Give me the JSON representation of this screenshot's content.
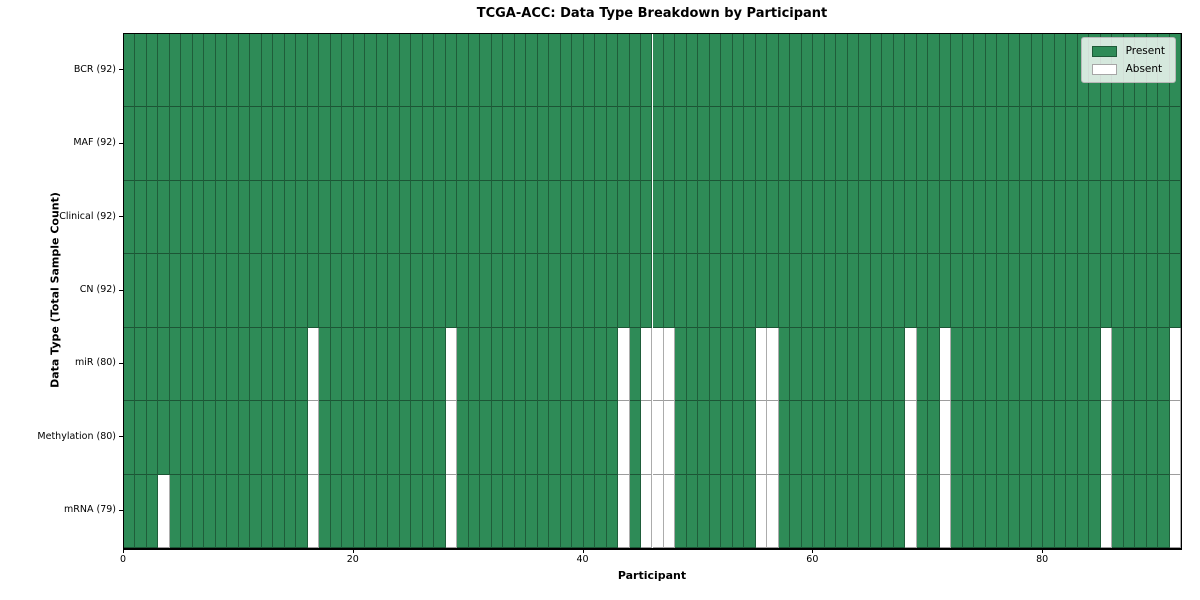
{
  "chart_data": {
    "type": "heatmap",
    "title": "TCGA-ACC: Data Type Breakdown by Participant",
    "xlabel": "Participant",
    "ylabel": "Data Type (Total Sample Count)",
    "n_participants": 92,
    "x_range": [
      0,
      92
    ],
    "x_ticks": [
      0,
      20,
      40,
      60,
      80
    ],
    "grid": true,
    "legend_position": "upper right",
    "legend": {
      "entries": [
        {
          "label": "Present",
          "color": "#2E8B57"
        },
        {
          "label": "Absent",
          "color": "#FFFFFF"
        }
      ]
    },
    "rows": [
      {
        "label": "BCR (92)",
        "total_samples": 92,
        "absent_participants": []
      },
      {
        "label": "MAF (92)",
        "total_samples": 92,
        "absent_participants": []
      },
      {
        "label": "Clinical (92)",
        "total_samples": 92,
        "absent_participants": []
      },
      {
        "label": "CN (92)",
        "total_samples": 92,
        "absent_participants": []
      },
      {
        "label": "miR (80)",
        "total_samples": 80,
        "absent_participants": [
          16,
          28,
          43,
          45,
          46,
          47,
          55,
          56,
          68,
          71,
          85,
          91
        ]
      },
      {
        "label": "Methylation (80)",
        "total_samples": 80,
        "absent_participants": [
          16,
          28,
          43,
          45,
          46,
          47,
          55,
          56,
          68,
          71,
          85,
          91
        ]
      },
      {
        "label": "mRNA (79)",
        "total_samples": 79,
        "absent_participants": [
          3,
          16,
          28,
          43,
          45,
          46,
          47,
          55,
          56,
          68,
          71,
          85,
          91
        ]
      }
    ],
    "colors": {
      "present": "#2E8B57",
      "absent": "#FFFFFF",
      "cell_edge": "rgba(0,0,0,0.32)",
      "spine": "#000000",
      "background": "#FFFFFF"
    }
  }
}
